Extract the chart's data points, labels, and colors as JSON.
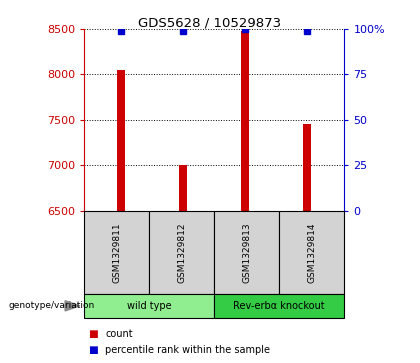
{
  "title": "GDS5628 / 10529873",
  "samples": [
    "GSM1329811",
    "GSM1329812",
    "GSM1329813",
    "GSM1329814"
  ],
  "counts": [
    8050,
    7000,
    8480,
    7450
  ],
  "percentiles": [
    99,
    99,
    100,
    99
  ],
  "ylim_left": [
    6500,
    8500
  ],
  "ylim_right": [
    0,
    100
  ],
  "yticks_left": [
    6500,
    7000,
    7500,
    8000,
    8500
  ],
  "yticks_right": [
    0,
    25,
    50,
    75,
    100
  ],
  "yticklabels_right": [
    "0",
    "25",
    "50",
    "75",
    "100%"
  ],
  "bar_color": "#cc0000",
  "dot_color": "#0000cc",
  "left_axis_color": "#cc0000",
  "right_axis_color": "#0000cc",
  "grid_color": "#000000",
  "groups": [
    {
      "label": "wild type",
      "samples": [
        0,
        1
      ],
      "color": "#90ee90"
    },
    {
      "label": "Rev-erbα knockout",
      "samples": [
        2,
        3
      ],
      "color": "#33cc44"
    }
  ],
  "genotype_label": "genotype/variation",
  "cell_bg": "#d3d3d3",
  "bar_width": 0.12
}
